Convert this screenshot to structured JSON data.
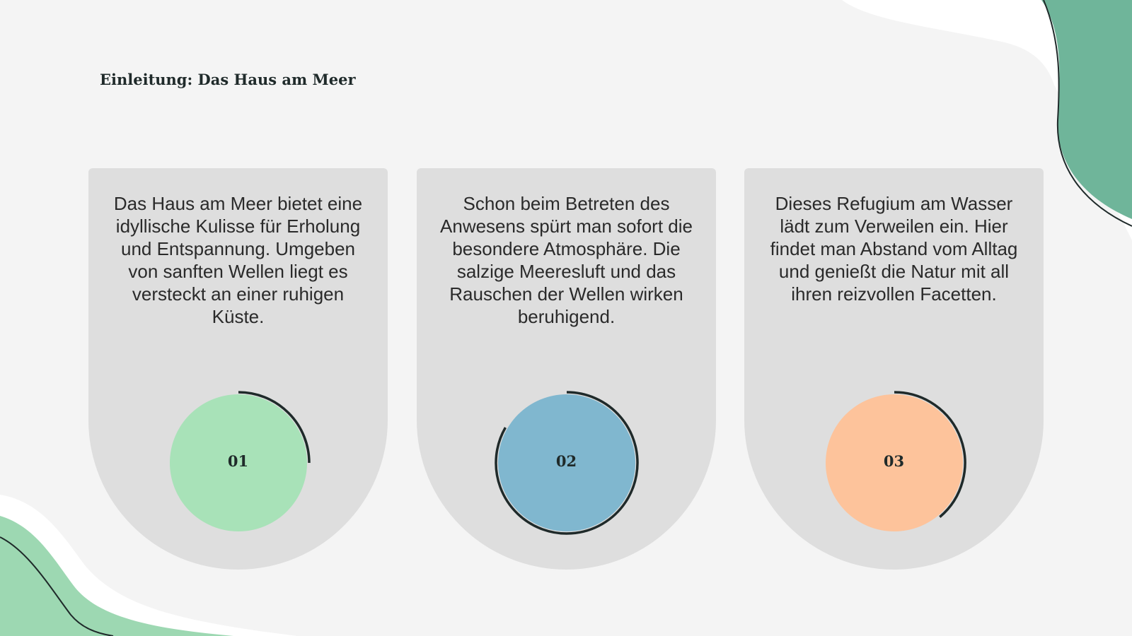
{
  "header": {
    "title": "Einleitung: Das Haus am Meer"
  },
  "cards": [
    {
      "text": "Das Haus am Meer bietet eine idyllische Kulisse für Erholung und Entspannung. Umgeben von sanften Wellen liegt es versteckt an einer ruhigen Küste.",
      "number": "01"
    },
    {
      "text": "Schon beim Betreten des Anwesens spürt man sofort die besondere Atmosphäre. Die salzige Meeresluft und das Rauschen der Wellen wirken beruhigend.",
      "number": "02"
    },
    {
      "text": "Dieses Refugium am Wasser lädt zum Verweilen ein. Hier findet man Abstand vom Alltag und genießt die Natur mit all ihren reizvollen Facetten.",
      "number": "03"
    }
  ]
}
